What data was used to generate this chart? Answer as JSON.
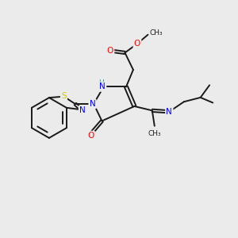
{
  "bg_color": "#ebebeb",
  "bond_color": "#1a1a1a",
  "atom_colors": {
    "N": "#0000ff",
    "O": "#ff0000",
    "S": "#cccc00",
    "C": "#1a1a1a",
    "H": "#4a9090"
  },
  "lw": 1.4,
  "fs": 7.5,
  "fs_small": 6.5
}
